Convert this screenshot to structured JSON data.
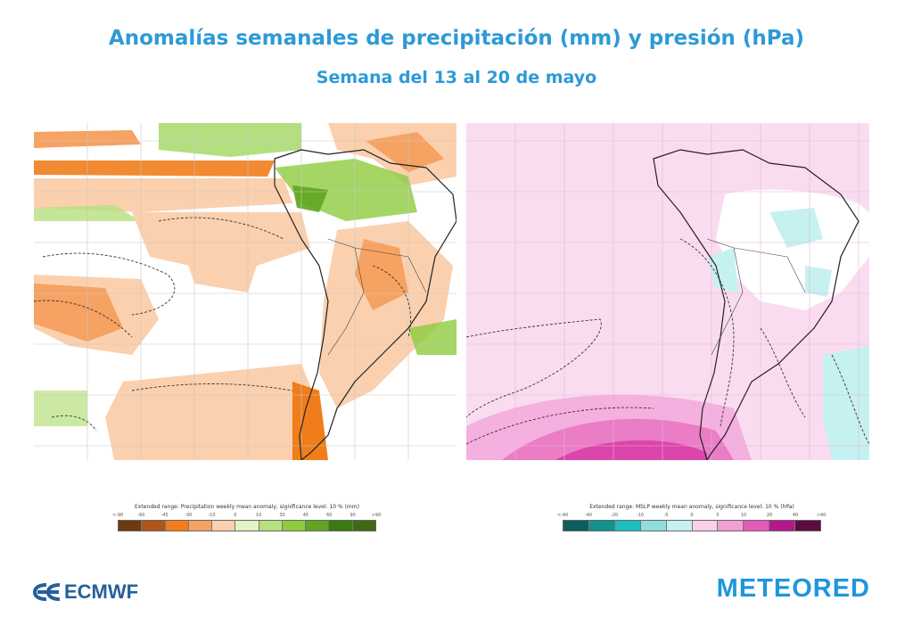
{
  "header": {
    "title": "Anomalías semanales de precipitación (mm) y presión (hPa)",
    "subtitle": "Semana del 13 al 20 de mayo"
  },
  "maps": {
    "precipitation": {
      "variable": "precipitation-anomaly",
      "colormap": "brown-orange-green"
    },
    "pressure": {
      "variable": "mslp-anomaly",
      "colormap": "teal-pink-purple"
    }
  },
  "legends": {
    "precipitation": {
      "title": "Extended range: Precipitation weekly mean anomaly, significance level: 10 % (mm)",
      "ticks": [
        "<-90",
        "-60",
        "-45",
        "-30",
        "-10",
        "0",
        "10",
        "30",
        "45",
        "60",
        "90",
        ">90"
      ],
      "colors": [
        "#6b3a10",
        "#b0561b",
        "#f07d1a",
        "#f6a262",
        "#fbd0ae",
        "#e5f2c4",
        "#b7e07e",
        "#8ecb3e",
        "#5fa51f",
        "#3a7a10",
        "#3f6a12"
      ]
    },
    "pressure": {
      "title": "Extended range: MSLP weekly mean anomaly, significance level: 10 % (hPa)",
      "ticks": [
        "<-40",
        "-40",
        "-20",
        "-10",
        "-5",
        "0",
        "5",
        "10",
        "20",
        "40",
        ">40"
      ],
      "colors": [
        "#0d5c5e",
        "#12918f",
        "#1fbdbd",
        "#8fdede",
        "#c6f1f1",
        "#fad0ea",
        "#f49fd4",
        "#e45bb8",
        "#b8178c",
        "#5c0c3e"
      ]
    }
  },
  "logos": {
    "ecmwf": "ECMWF",
    "meteored": "METEORED"
  }
}
